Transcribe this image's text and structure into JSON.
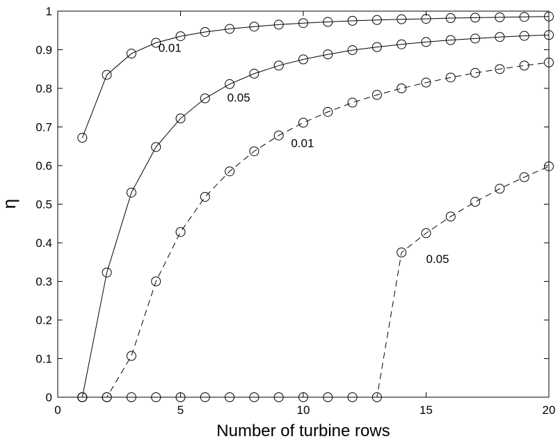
{
  "chart_data": {
    "type": "line",
    "xlabel": "Number of turbine rows",
    "ylabel": "η",
    "xlim": [
      0,
      20
    ],
    "ylim": [
      0,
      1
    ],
    "x_ticks": [
      "0",
      "5",
      "10",
      "15",
      "20"
    ],
    "y_ticks": [
      "0",
      "0.1",
      "0.2",
      "0.3",
      "0.4",
      "0.5",
      "0.6",
      "0.7",
      "0.8",
      "0.9",
      "1"
    ],
    "x": [
      1,
      2,
      3,
      4,
      5,
      6,
      7,
      8,
      9,
      10,
      11,
      12,
      13,
      14,
      15,
      16,
      17,
      18,
      19,
      20
    ],
    "series": [
      {
        "label": "0.01",
        "line_style": "solid",
        "values": [
          0.672,
          0.835,
          0.89,
          0.918,
          0.935,
          0.946,
          0.954,
          0.96,
          0.965,
          0.969,
          0.972,
          0.975,
          0.977,
          0.979,
          0.98,
          0.982,
          0.983,
          0.984,
          0.985,
          0.986
        ]
      },
      {
        "label": "0.05",
        "line_style": "solid",
        "values": [
          0,
          0.323,
          0.53,
          0.648,
          0.722,
          0.774,
          0.811,
          0.838,
          0.859,
          0.875,
          0.888,
          0.899,
          0.907,
          0.914,
          0.92,
          0.925,
          0.929,
          0.933,
          0.936,
          0.938
        ]
      },
      {
        "label": "0.01",
        "line_style": "dashed",
        "values": [
          0,
          0,
          0.107,
          0.3,
          0.428,
          0.519,
          0.585,
          0.637,
          0.678,
          0.711,
          0.739,
          0.763,
          0.783,
          0.8,
          0.815,
          0.828,
          0.84,
          0.85,
          0.859,
          0.867
        ]
      },
      {
        "label": "0.05",
        "line_style": "dashed",
        "values": [
          0,
          0,
          0,
          0,
          0,
          0,
          0,
          0,
          0,
          0,
          0,
          0,
          0,
          0.375,
          0.425,
          0.468,
          0.506,
          0.54,
          0.57,
          0.598
        ]
      }
    ],
    "annotations": [
      "0.01",
      "0.05",
      "0.01",
      "0.05"
    ],
    "marker": "circle",
    "grid": false,
    "color": "#000000"
  }
}
